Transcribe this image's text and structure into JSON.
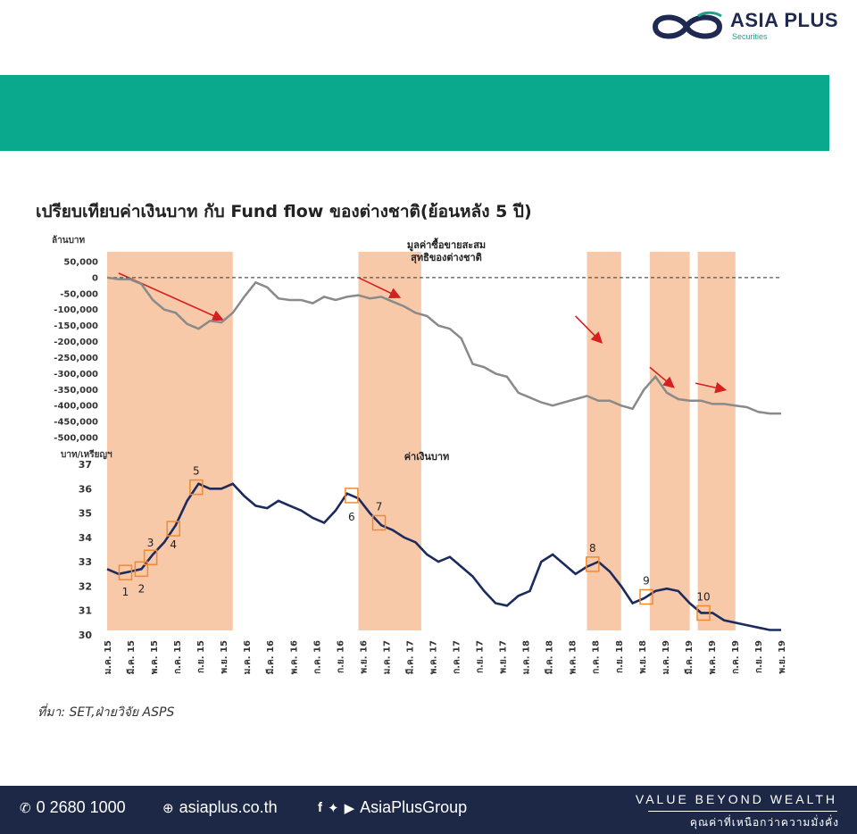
{
  "logo": {
    "name": "ASIA PLUS",
    "sub": "Securities"
  },
  "colors": {
    "banner": "#0aa88c",
    "footer": "#1c2845",
    "shade": "#f8c9a8",
    "fund": "#8a8a8a",
    "baht": "#1c2b5e",
    "arrow": "#d62020",
    "box": "#f08a30"
  },
  "title": "เปรียบเทียบค่าเงินบาท กับ Fund flow ของต่างชาติ(ย้อนหลัง 5 ปี)",
  "source": "ที่มา: SET,ฝ่ายวิจัย ASPS",
  "footer": {
    "phone": "0 2680 1000",
    "website": "asiaplus.co.th",
    "social": "AsiaPlusGroup",
    "tagline": "VALUE BEYOND WEALTH",
    "tagline_th": "คุณค่าที่เหนือกว่าความมั่งคั่ง"
  },
  "chart_data": [
    {
      "type": "line",
      "ylabel": "ล้านบาท",
      "series_label": "มูลค่าซื้อขายสะสม สุทธิของต่างชาติ",
      "series_label_lines": [
        "มูลค่าซื้อขายสะสม",
        "สุทธิของต่างชาติ"
      ],
      "ylim": [
        -500000,
        50000
      ],
      "ytick_labels": [
        "50,000",
        "0",
        "-50,000",
        "-100,000",
        "-150,000",
        "-200,000",
        "-250,000",
        "-300,000",
        "-350,000",
        "-400,000",
        "-450,000",
        "-500,000"
      ],
      "reference_line": 0,
      "x": [
        0,
        1,
        2,
        3,
        4,
        5,
        6,
        7,
        8,
        9,
        10,
        11,
        12,
        13,
        14,
        15,
        16,
        17,
        18,
        19,
        20,
        21,
        22,
        23,
        24,
        25,
        26,
        27,
        28,
        29,
        30,
        31,
        32,
        33,
        34,
        35,
        36,
        37,
        38,
        39,
        40,
        41,
        42,
        43,
        44,
        45,
        46,
        47,
        48,
        49,
        50,
        51,
        52,
        53,
        54,
        55,
        56,
        57,
        58,
        59
      ],
      "values": [
        0,
        -5000,
        -5000,
        -20000,
        -70000,
        -100000,
        -110000,
        -145000,
        -160000,
        -135000,
        -140000,
        -110000,
        -60000,
        -15000,
        -30000,
        -65000,
        -70000,
        -70000,
        -80000,
        -60000,
        -70000,
        -60000,
        -55000,
        -65000,
        -60000,
        -75000,
        -90000,
        -110000,
        -120000,
        -150000,
        -160000,
        -190000,
        -270000,
        -280000,
        -300000,
        -310000,
        -360000,
        -375000,
        -390000,
        -400000,
        -390000,
        -380000,
        -370000,
        -385000,
        -385000,
        -400000,
        -410000,
        -350000,
        -310000,
        -360000,
        -380000,
        -385000,
        -385000,
        -395000,
        -395000,
        -400000,
        -405000,
        -420000,
        -425000,
        -425000
      ]
    },
    {
      "type": "line",
      "ylabel": "บาท/เหรียญฯ",
      "series_label": "ค่าเงินบาท",
      "ylim": [
        30,
        37
      ],
      "ytick_labels": [
        "37",
        "36",
        "35",
        "34",
        "33",
        "32",
        "31",
        "30"
      ],
      "xtick_labels": [
        "ม.ค. 15",
        "มี.ค. 15",
        "พ.ค. 15",
        "ก.ค. 15",
        "ก.ย. 15",
        "พ.ย. 15",
        "ม.ค. 16",
        "มี.ค. 16",
        "พ.ค. 16",
        "ก.ค. 16",
        "ก.ย. 16",
        "พ.ย. 16",
        "ม.ค. 17",
        "มี.ค. 17",
        "พ.ค. 17",
        "ก.ค. 17",
        "ก.ย. 17",
        "พ.ย. 17",
        "ม.ค. 18",
        "มี.ค. 18",
        "พ.ค. 18",
        "ก.ค. 18",
        "ก.ย. 18",
        "พ.ย. 18",
        "ม.ค. 19",
        "มี.ค. 19",
        "พ.ค. 19",
        "ก.ค. 19",
        "ก.ย. 19",
        "พ.ย. 19"
      ],
      "x": [
        0,
        1,
        2,
        3,
        4,
        5,
        6,
        7,
        8,
        9,
        10,
        11,
        12,
        13,
        14,
        15,
        16,
        17,
        18,
        19,
        20,
        21,
        22,
        23,
        24,
        25,
        26,
        27,
        28,
        29,
        30,
        31,
        32,
        33,
        34,
        35,
        36,
        37,
        38,
        39,
        40,
        41,
        42,
        43,
        44,
        45,
        46,
        47,
        48,
        49,
        50,
        51,
        52,
        53,
        54,
        55,
        56,
        57,
        58,
        59
      ],
      "values": [
        32.7,
        32.5,
        32.6,
        32.7,
        33.3,
        33.8,
        34.5,
        35.5,
        36.2,
        36.0,
        36.0,
        36.2,
        35.7,
        35.3,
        35.2,
        35.5,
        35.3,
        35.1,
        34.8,
        34.6,
        35.1,
        35.8,
        35.6,
        35.0,
        34.5,
        34.3,
        34.0,
        33.8,
        33.3,
        33.0,
        33.2,
        32.8,
        32.4,
        31.8,
        31.3,
        31.2,
        31.6,
        31.8,
        33.0,
        33.3,
        32.9,
        32.5,
        32.8,
        33.0,
        32.6,
        32.0,
        31.3,
        31.5,
        31.8,
        31.9,
        31.8,
        31.3,
        30.9,
        30.9,
        30.6,
        30.5,
        30.4,
        30.3,
        30.2,
        30.2
      ],
      "annotations": [
        "1",
        "2",
        "3",
        "4",
        "5",
        "6",
        "7",
        "8",
        "9",
        "10"
      ]
    }
  ],
  "shaded_periods": [
    [
      0,
      11
    ],
    [
      22,
      27.5
    ],
    [
      42,
      45
    ],
    [
      47.5,
      51
    ],
    [
      51.7,
      55
    ]
  ]
}
